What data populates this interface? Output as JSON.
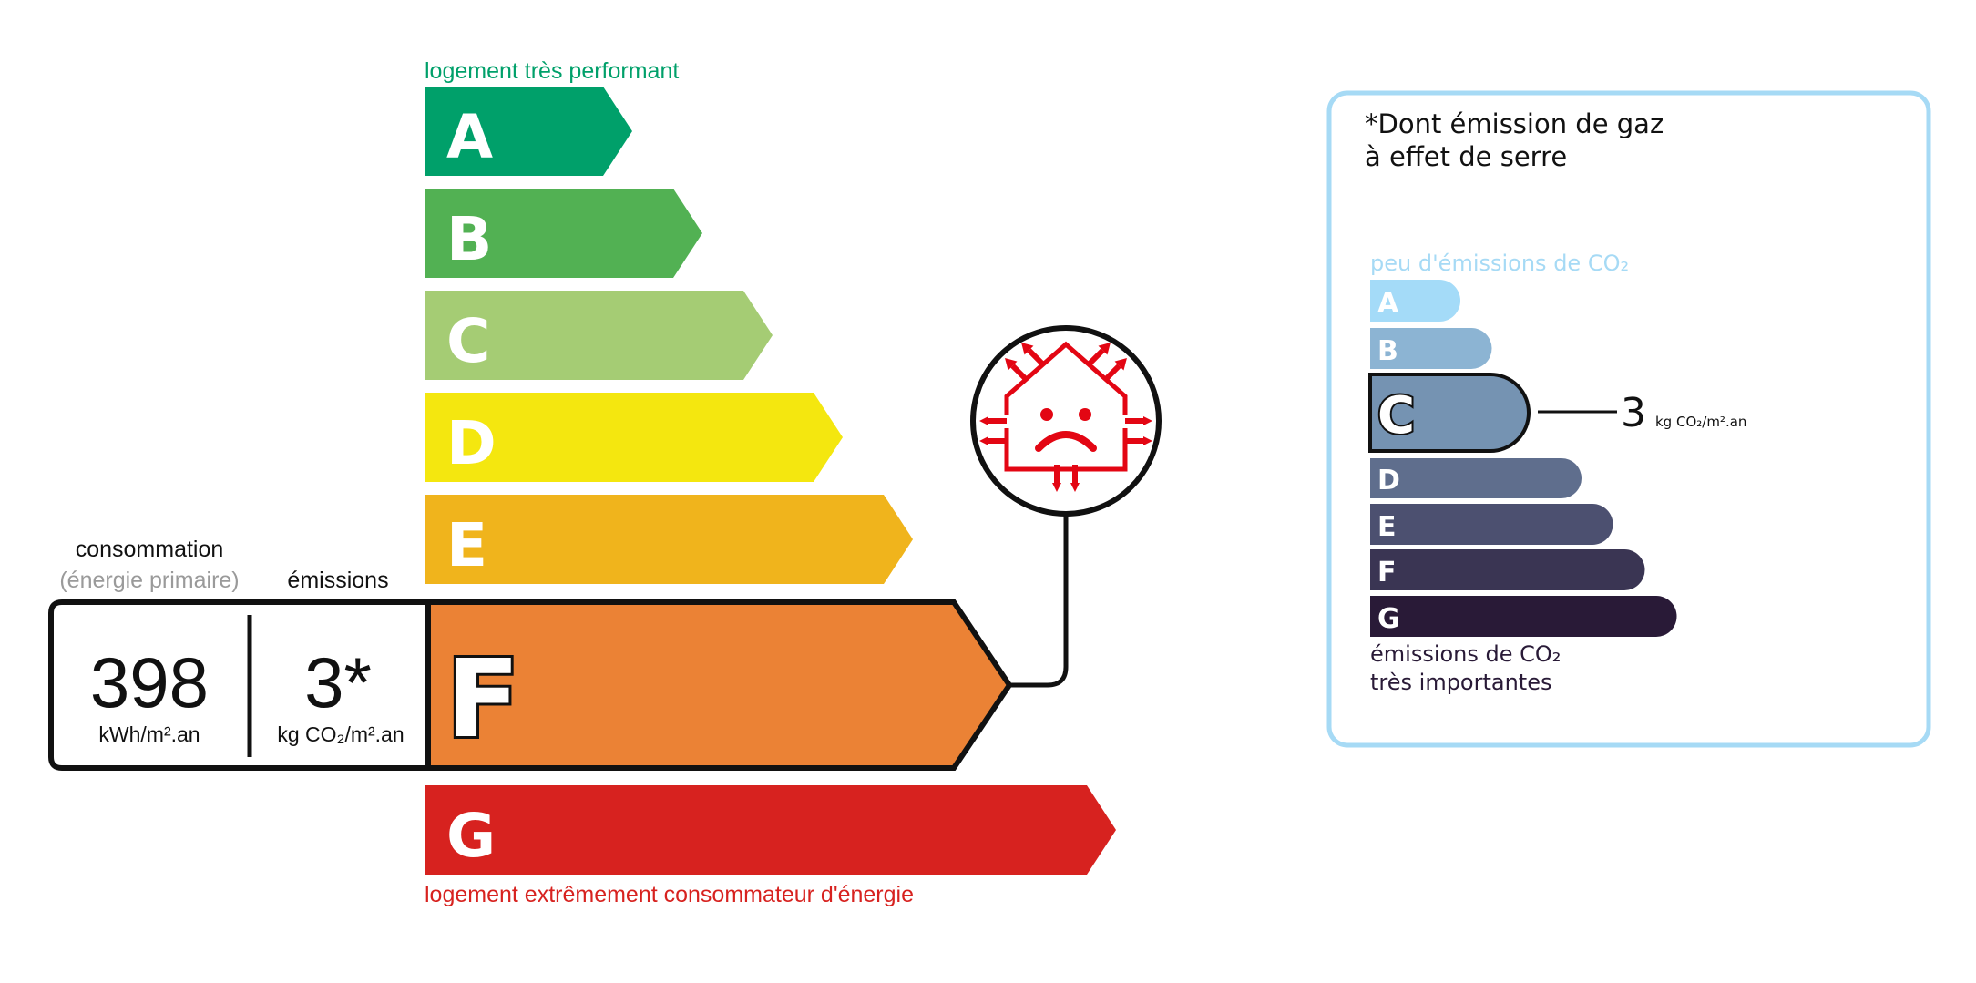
{
  "energy_label": {
    "top_caption": "logement très performant",
    "bottom_caption": "logement extrêmement consommateur d'énergie",
    "classes": [
      {
        "letter": "A",
        "color": "#00a06a"
      },
      {
        "letter": "B",
        "color": "#52b153"
      },
      {
        "letter": "C",
        "color": "#a5cc74"
      },
      {
        "letter": "D",
        "color": "#f4e70f"
      },
      {
        "letter": "E",
        "color": "#f0b41c"
      },
      {
        "letter": "F",
        "color": "#eb8235"
      },
      {
        "letter": "G",
        "color": "#d7221f"
      }
    ],
    "current_class": "F",
    "consumption_header": "consommation",
    "consumption_subheader": "(énergie primaire)",
    "emissions_header": "émissions",
    "consumption_value": "398",
    "consumption_unit": "kWh/m².an",
    "emissions_value": "3*",
    "emissions_unit": "kg CO₂/m².an",
    "icon": "poorly-insulated-house-sad-face-icon"
  },
  "ghg_panel": {
    "title_line1": "*Dont émission de gaz",
    "title_line2": "à effet de serre",
    "top_caption": "peu d'émissions de CO₂",
    "bottom_caption_line1": "émissions de CO₂",
    "bottom_caption_line2": "très importantes",
    "classes": [
      {
        "letter": "A",
        "color": "#a4dbf8"
      },
      {
        "letter": "B",
        "color": "#8cb4d3"
      },
      {
        "letter": "C",
        "color": "#7593b2"
      },
      {
        "letter": "D",
        "color": "#5f6e8d"
      },
      {
        "letter": "E",
        "color": "#4c5070"
      },
      {
        "letter": "F",
        "color": "#3a3553"
      },
      {
        "letter": "G",
        "color": "#291a37"
      }
    ],
    "current_class": "C",
    "value": "3",
    "unit": "kg CO₂/m².an",
    "border_color": "#a6daf5"
  }
}
